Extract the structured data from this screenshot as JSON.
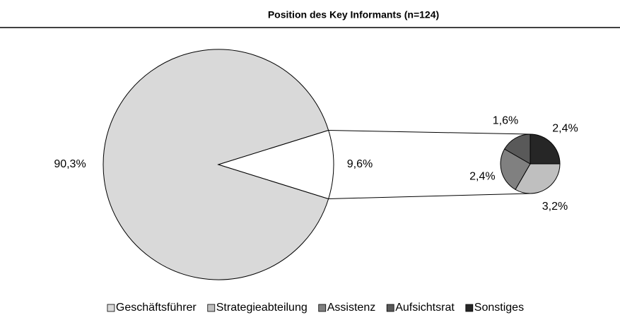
{
  "chart_data": {
    "type": "pie-of-pie",
    "title": "Position des Key Informants (n=124)",
    "categories": [
      "Geschäftsführer",
      "Strategieabteilung",
      "Assistenz",
      "Aufsichtsrat",
      "Sonstiges"
    ],
    "values": [
      90.3,
      3.2,
      2.4,
      1.6,
      2.4
    ],
    "value_labels": [
      "90,3%",
      "3,2%",
      "2,4%",
      "1,6%",
      "2,4%"
    ],
    "colors": [
      "#d9d9d9",
      "#bfbfbf",
      "#808080",
      "#595959",
      "#262626"
    ],
    "secondary_value": 9.6,
    "secondary_label": "9,6%",
    "legend": "bottom"
  }
}
